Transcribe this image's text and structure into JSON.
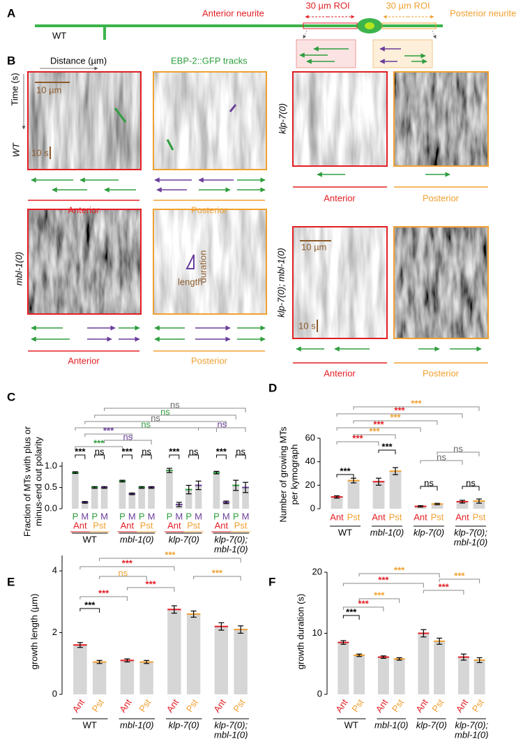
{
  "panel_a": {
    "label": "A",
    "strain": "WT",
    "anterior": "Anterior neurite",
    "posterior": "Posterior neurite",
    "roi_left": "30 µm ROI",
    "roi_right": "30 µm ROI"
  },
  "panel_b": {
    "label": "B",
    "distance": "Distance (µm)",
    "time": "Time (s)",
    "tracks": "EBP-2::GFP tracks",
    "rows": [
      {
        "strain": "WT",
        "scale_x": "10 µm",
        "scale_t": "10 s",
        "anterior": "Anterior",
        "posterior": "Posterior"
      },
      {
        "strain": "klp-7(0)",
        "anterior": "Anterior",
        "posterior": "Posterior"
      },
      {
        "strain": "mbl-1(0)",
        "duration": "duration",
        "length": "length",
        "anterior": "Anterior",
        "posterior": "Posterior"
      },
      {
        "strain": "klp-7(0); mbl-1(0)",
        "scale_x": "10 µm",
        "scale_t": "10 s",
        "anterior": "Anterior",
        "posterior": "Posterior"
      }
    ]
  },
  "chart_data": [
    {
      "type": "bar",
      "label": "C",
      "ylabel": [
        "Fraction of MTs with plus or",
        "minus-end out polarity"
      ],
      "categories": [
        "P",
        "M",
        "P",
        "M",
        "P",
        "M",
        "P",
        "M",
        "P",
        "M",
        "P",
        "M",
        "P",
        "M",
        "P",
        "M"
      ],
      "values": [
        0.85,
        0.15,
        0.5,
        0.5,
        0.65,
        0.35,
        0.5,
        0.5,
        0.9,
        0.1,
        0.45,
        0.55,
        0.85,
        0.15,
        0.55,
        0.5
      ],
      "errors": [
        0.02,
        0.02,
        0.02,
        0.02,
        0.02,
        0.02,
        0.02,
        0.02,
        0.05,
        0.05,
        0.1,
        0.1,
        0.03,
        0.03,
        0.12,
        0.12
      ],
      "colors": [
        "#2e9e3e",
        "#6a3d9a",
        "#2e9e3e",
        "#6a3d9a",
        "#2e9e3e",
        "#6a3d9a",
        "#2e9e3e",
        "#6a3d9a",
        "#2e9e3e",
        "#6a3d9a",
        "#2e9e3e",
        "#6a3d9a",
        "#2e9e3e",
        "#6a3d9a",
        "#2e9e3e",
        "#6a3d9a"
      ],
      "sublabels": [
        "Ant",
        "Pst",
        "Ant",
        "Pst",
        "Ant",
        "Pst",
        "Ant",
        "Pst"
      ],
      "sublabel_colors": [
        "#e31e24",
        "#f0a030",
        "#e31e24",
        "#f0a030",
        "#e31e24",
        "#f0a030",
        "#e31e24",
        "#f0a030"
      ],
      "groups": [
        "WT",
        "mbl-1(0)",
        "klp-7(0)",
        [
          "klp-7(0);",
          "mbl-1(0)"
        ]
      ],
      "bar_color": "#d6d6d6",
      "ylim": [
        0,
        1.1
      ],
      "yticks": [
        {
          "value": 0,
          "label": "0.0"
        },
        {
          "value": 0.5,
          "label": "0.5"
        },
        {
          "value": 1,
          "label": "1.0"
        }
      ],
      "annotations": [
        {
          "text": "ns",
          "color": "#666666"
        },
        {
          "text": "ns",
          "color": "#2e9e3e"
        },
        {
          "text": "ns",
          "color": "#666666"
        },
        {
          "text": "ns",
          "color": "#2e9e3e"
        },
        {
          "text": "ns",
          "color": "#6a3d9a"
        },
        {
          "text": "***",
          "color": "#6a3d9a"
        },
        {
          "text": "ns",
          "color": "#6a3d9a"
        },
        {
          "text": "***",
          "color": "#2e9e3e"
        },
        {
          "text": "***",
          "color": "#000000"
        },
        {
          "text": "ns",
          "color": "#000000"
        },
        {
          "text": "***",
          "color": "#000000"
        },
        {
          "text": "ns",
          "color": "#000000"
        },
        {
          "text": "***",
          "color": "#000000"
        },
        {
          "text": "ns",
          "color": "#000000"
        },
        {
          "text": "***",
          "color": "#000000"
        },
        {
          "text": "ns",
          "color": "#000000"
        }
      ]
    },
    {
      "type": "bar",
      "label": "D",
      "ylabel": [
        "Number of growing MTs",
        "per kymograph"
      ],
      "categories": [
        "Ant",
        "Pst",
        "Ant",
        "Pst",
        "Ant",
        "Pst",
        "Ant",
        "Pst"
      ],
      "values": [
        10,
        24,
        23,
        32,
        2,
        4,
        6,
        6.5
      ],
      "errors": [
        1,
        2,
        3,
        3,
        0.6,
        0.6,
        1.2,
        1.8
      ],
      "colors": [
        "#e31e24",
        "#f0a030",
        "#e31e24",
        "#f0a030",
        "#e31e24",
        "#f0a030",
        "#e31e24",
        "#f0a030"
      ],
      "groups": [
        "WT",
        "mbl-1(0)",
        "klp-7(0)",
        [
          "klp-7(0);",
          "mbl-1(0)"
        ]
      ],
      "bar_color": "#d6d6d6",
      "ylim": [
        0,
        60
      ],
      "yticks": [
        0,
        20,
        40,
        60
      ],
      "annotations": [
        {
          "text": "***",
          "color": "#f0a030"
        },
        {
          "text": "***",
          "color": "#e31e24"
        },
        {
          "text": "***",
          "color": "#f0a030"
        },
        {
          "text": "***",
          "color": "#e31e24"
        },
        {
          "text": "***",
          "color": "#f0a030"
        },
        {
          "text": "***",
          "color": "#e31e24"
        },
        {
          "text": "***",
          "color": "#000000"
        },
        {
          "text": "***",
          "color": "#000000"
        },
        {
          "text": "ns",
          "color": "#666666"
        },
        {
          "text": "ns",
          "color": "#666666"
        },
        {
          "text": "ns",
          "color": "#000000"
        },
        {
          "text": "ns",
          "color": "#000000"
        }
      ]
    },
    {
      "type": "bar",
      "label": "E",
      "ylabel": "growth length (µm)",
      "categories": [
        "Ant",
        "Pst",
        "Ant",
        "Pst",
        "Ant",
        "Pst",
        "Ant",
        "Pst"
      ],
      "values": [
        1.6,
        1.05,
        1.1,
        1.05,
        2.75,
        2.6,
        2.2,
        2.1
      ],
      "errors": [
        0.08,
        0.05,
        0.05,
        0.05,
        0.12,
        0.1,
        0.12,
        0.12
      ],
      "colors": [
        "#e31e24",
        "#f0a030",
        "#e31e24",
        "#f0a030",
        "#e31e24",
        "#f0a030",
        "#e31e24",
        "#f0a030"
      ],
      "groups": [
        "WT",
        "mbl-1(0)",
        "klp-7(0)",
        [
          "klp-7(0);",
          "mbl-1(0)"
        ]
      ],
      "bar_color": "#d6d6d6",
      "ylim": [
        0,
        4.5
      ],
      "yticks": [
        0,
        2,
        4
      ],
      "annotations": [
        {
          "text": "***",
          "color": "#f0a030"
        },
        {
          "text": "***",
          "color": "#e31e24"
        },
        {
          "text": "ns",
          "color": "#f0a030"
        },
        {
          "text": "***",
          "color": "#f0a030"
        },
        {
          "text": "***",
          "color": "#e31e24"
        },
        {
          "text": "***",
          "color": "#e31e24"
        },
        {
          "text": "***",
          "color": "#000000"
        }
      ]
    },
    {
      "type": "bar",
      "label": "F",
      "ylabel": "growth duration (s)",
      "categories": [
        "Ant",
        "Pst",
        "Ant",
        "Pst",
        "Ant",
        "Pst",
        "Ant",
        "Pst"
      ],
      "values": [
        8.5,
        6.4,
        6.1,
        5.8,
        10,
        8.7,
        6.1,
        5.6
      ],
      "errors": [
        0.3,
        0.2,
        0.2,
        0.2,
        0.6,
        0.5,
        0.5,
        0.4
      ],
      "colors": [
        "#e31e24",
        "#f0a030",
        "#e31e24",
        "#f0a030",
        "#e31e24",
        "#f0a030",
        "#e31e24",
        "#f0a030"
      ],
      "groups": [
        "WT",
        "mbl-1(0)",
        "klp-7(0)",
        [
          "klp-7(0);",
          "mbl-1(0)"
        ]
      ],
      "bar_color": "#d6d6d6",
      "ylim": [
        0,
        20
      ],
      "yticks": [
        0,
        10,
        20
      ],
      "annotations": [
        {
          "text": "***",
          "color": "#f0a030"
        },
        {
          "text": "***",
          "color": "#f0a030"
        },
        {
          "text": "***",
          "color": "#e31e24"
        },
        {
          "text": "***",
          "color": "#e31e24"
        },
        {
          "text": "***",
          "color": "#f0a030"
        },
        {
          "text": "***",
          "color": "#e31e24"
        },
        {
          "text": "***",
          "color": "#000000"
        }
      ]
    }
  ]
}
